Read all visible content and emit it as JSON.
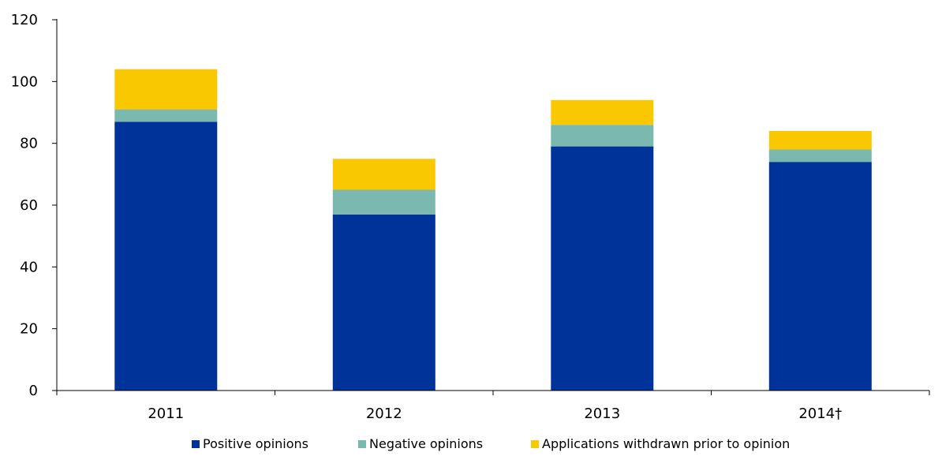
{
  "chart_data": {
    "type": "bar",
    "stacked": true,
    "categories": [
      "2011",
      "2012",
      "2013",
      "2014†"
    ],
    "series": [
      {
        "name": "Positive opinions",
        "color": "#003399",
        "values": [
          87,
          57,
          79,
          74
        ]
      },
      {
        "name": "Negative opinions",
        "color": "#7ab8b0",
        "values": [
          4,
          8,
          7,
          4
        ]
      },
      {
        "name": "Applications withdrawn prior to opinion",
        "color": "#f9c800",
        "values": [
          13,
          10,
          8,
          6
        ]
      }
    ],
    "y_ticks": [
      0,
      20,
      40,
      60,
      80,
      100,
      120
    ],
    "ylim": [
      0,
      120
    ],
    "grid": false,
    "legend_position": "bottom"
  }
}
